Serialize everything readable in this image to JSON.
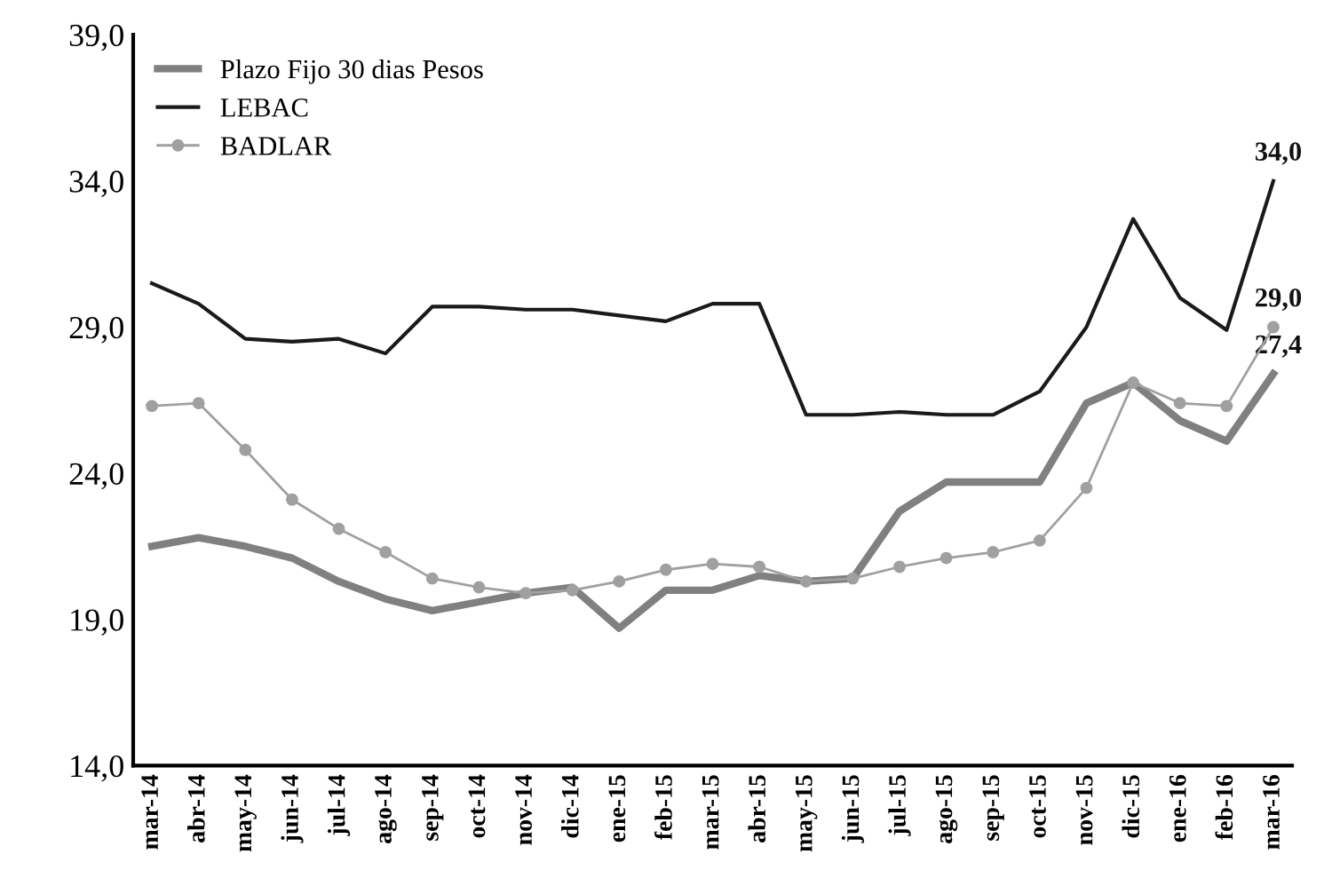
{
  "chart_data": {
    "type": "line",
    "categories": [
      "mar-14",
      "abr-14",
      "may-14",
      "jun-14",
      "jul-14",
      "ago-14",
      "sep-14",
      "oct-14",
      "nov-14",
      "dic-14",
      "ene-15",
      "feb-15",
      "mar-15",
      "abr-15",
      "may-15",
      "jun-15",
      "jul-15",
      "ago-15",
      "sep-15",
      "oct-15",
      "nov-15",
      "dic-15",
      "ene-16",
      "feb-16",
      "mar-16"
    ],
    "series": [
      {
        "name": "Plazo Fijo 30 dias Pesos",
        "color": "#808080",
        "marker": "none",
        "values": [
          21.5,
          21.8,
          21.5,
          21.1,
          20.3,
          19.7,
          19.3,
          19.6,
          19.9,
          20.1,
          18.7,
          20.0,
          20.0,
          20.5,
          20.3,
          20.4,
          22.7,
          23.7,
          23.7,
          23.7,
          26.4,
          27.1,
          25.8,
          25.1,
          27.4
        ],
        "value_labels": [
          null,
          null,
          null,
          null,
          null,
          null,
          null,
          null,
          null,
          null,
          null,
          null,
          null,
          null,
          null,
          null,
          null,
          null,
          null,
          null,
          null,
          null,
          null,
          null,
          "27,4"
        ]
      },
      {
        "name": "LEBAC",
        "color": "#1a1a1a",
        "marker": "none",
        "values": [
          30.5,
          29.8,
          28.6,
          28.5,
          28.6,
          28.1,
          29.7,
          29.7,
          29.6,
          29.6,
          29.4,
          29.2,
          29.8,
          29.8,
          26.0,
          26.0,
          26.1,
          26.0,
          26.0,
          26.8,
          29.0,
          32.7,
          30.0,
          28.9,
          34.0
        ],
        "value_labels": [
          null,
          null,
          null,
          null,
          null,
          null,
          null,
          null,
          null,
          null,
          null,
          null,
          null,
          null,
          null,
          null,
          null,
          null,
          null,
          null,
          null,
          null,
          null,
          null,
          "34,0"
        ]
      },
      {
        "name": "BADLAR",
        "color": "#a0a0a0",
        "marker": "circle",
        "values": [
          26.3,
          26.4,
          24.8,
          23.1,
          22.1,
          21.3,
          20.4,
          20.1,
          19.9,
          20.0,
          20.3,
          20.7,
          20.9,
          20.8,
          20.3,
          20.4,
          20.8,
          21.1,
          21.3,
          21.7,
          23.5,
          27.1,
          26.4,
          26.3,
          29.0
        ],
        "value_labels": [
          null,
          null,
          null,
          null,
          null,
          null,
          null,
          null,
          null,
          null,
          null,
          null,
          null,
          null,
          null,
          null,
          null,
          null,
          null,
          null,
          null,
          null,
          null,
          null,
          "29,0"
        ]
      }
    ],
    "ylim": [
      14,
      39
    ],
    "yticks": [
      {
        "value": 14,
        "label": "14,0"
      },
      {
        "value": 19,
        "label": "19,0"
      },
      {
        "value": 24,
        "label": "24,0"
      },
      {
        "value": 29,
        "label": "29,0"
      },
      {
        "value": 34,
        "label": "34,0"
      },
      {
        "value": 39,
        "label": "39,0"
      }
    ],
    "grid": false,
    "legend": "top left"
  }
}
